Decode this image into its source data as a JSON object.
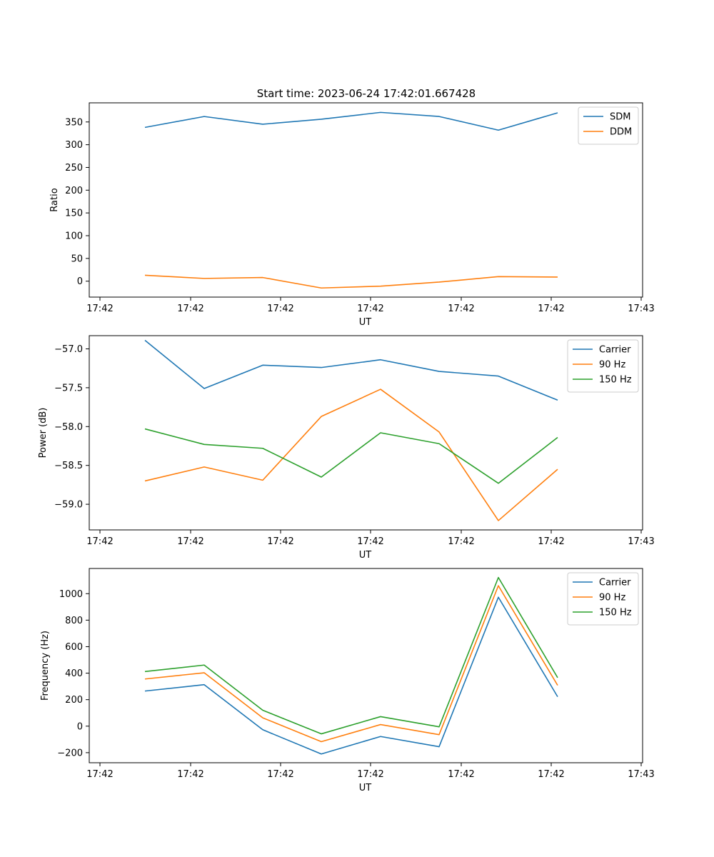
{
  "figure": {
    "title": "Start time: 2023-06-24 17:42:01.667428"
  },
  "chart_data": [
    {
      "type": "line",
      "xlabel": "UT",
      "ylabel": "Ratio",
      "x_tick_labels": [
        "17:42",
        "17:42",
        "17:42",
        "17:42",
        "17:42",
        "17:42",
        "17:43"
      ],
      "y_ticks": [
        0,
        50,
        100,
        150,
        200,
        250,
        300,
        350
      ],
      "ylim": [
        -35,
        392
      ],
      "legend_position": "top-right",
      "series": [
        {
          "name": "SDM",
          "color": "#1f77b4",
          "values": [
            338,
            362,
            345,
            356,
            371,
            362,
            332,
            370
          ]
        },
        {
          "name": "DDM",
          "color": "#ff7f0e",
          "values": [
            13,
            6,
            8,
            -15,
            -11,
            -2,
            10,
            9
          ]
        }
      ]
    },
    {
      "type": "line",
      "xlabel": "UT",
      "ylabel": "Power (dB)",
      "x_tick_labels": [
        "17:42",
        "17:42",
        "17:42",
        "17:42",
        "17:42",
        "17:42",
        "17:43"
      ],
      "y_ticks": [
        -57.0,
        -57.5,
        -58.0,
        -58.5,
        -59.0
      ],
      "y_tick_labels": [
        "−57.0",
        "−57.5",
        "−58.0",
        "−58.5",
        "−59.0"
      ],
      "ylim": [
        -59.33,
        -56.83
      ],
      "legend_position": "top-right",
      "series": [
        {
          "name": "Carrier",
          "color": "#1f77b4",
          "values": [
            -56.89,
            -57.51,
            -57.21,
            -57.24,
            -57.14,
            -57.29,
            -57.35,
            -57.66
          ]
        },
        {
          "name": "90 Hz",
          "color": "#ff7f0e",
          "values": [
            -58.7,
            -58.52,
            -58.69,
            -57.87,
            -57.52,
            -58.07,
            -59.21,
            -58.55
          ]
        },
        {
          "name": "150 Hz",
          "color": "#2ca02c",
          "values": [
            -58.03,
            -58.23,
            -58.28,
            -58.65,
            -58.08,
            -58.22,
            -58.73,
            -58.14
          ]
        }
      ]
    },
    {
      "type": "line",
      "xlabel": "UT",
      "ylabel": "Frequency (Hz)",
      "x_tick_labels": [
        "17:42",
        "17:42",
        "17:42",
        "17:42",
        "17:42",
        "17:42",
        "17:43"
      ],
      "y_ticks": [
        -200,
        0,
        200,
        400,
        600,
        800,
        1000
      ],
      "y_tick_labels": [
        "−200",
        "0",
        "200",
        "400",
        "600",
        "800",
        "1000"
      ],
      "ylim": [
        -276,
        1190
      ],
      "legend_position": "top-right",
      "series": [
        {
          "name": "Carrier",
          "color": "#1f77b4",
          "values": [
            265,
            313,
            -27,
            -210,
            -78,
            -155,
            973,
            222
          ]
        },
        {
          "name": "90 Hz",
          "color": "#ff7f0e",
          "values": [
            356,
            403,
            63,
            -117,
            12,
            -64,
            1060,
            308
          ]
        },
        {
          "name": "150 Hz",
          "color": "#2ca02c",
          "values": [
            412,
            461,
            120,
            -58,
            72,
            -5,
            1122,
            366
          ]
        }
      ]
    }
  ]
}
